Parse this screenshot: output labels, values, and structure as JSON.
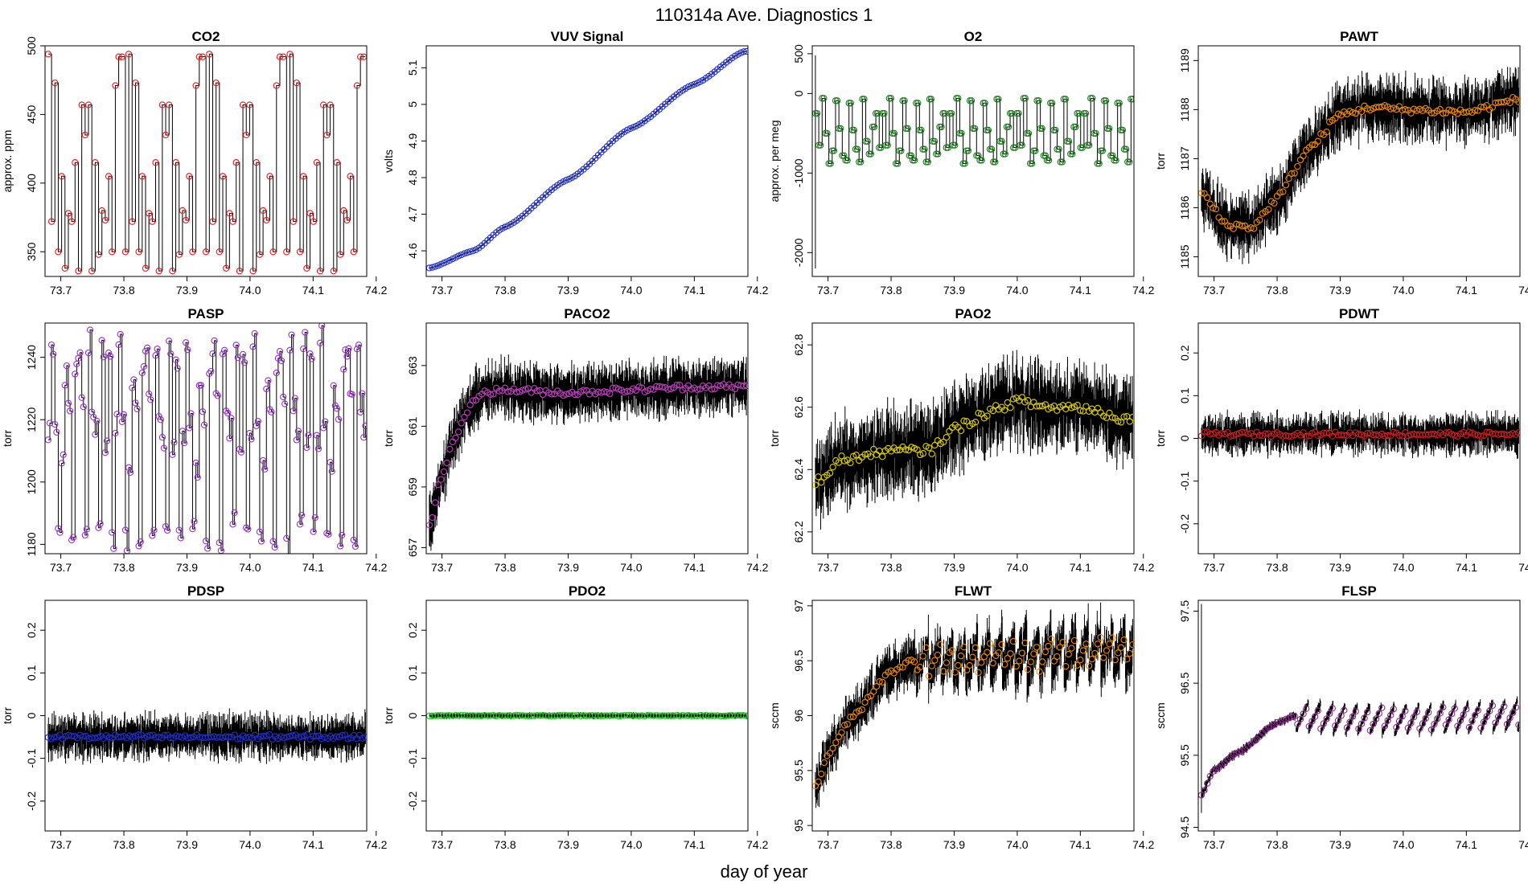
{
  "figure": {
    "title": "110314a   Ave. Diagnostics 1",
    "xlabel": "day of year"
  },
  "chart_data": [
    {
      "type": "line",
      "title": "CO2",
      "ylabel": "approx. ppm",
      "xlim": [
        73.675,
        74.185
      ],
      "ylim": [
        332,
        500
      ],
      "xticks": [
        73.7,
        73.8,
        73.9,
        74.0,
        74.1,
        74.2
      ],
      "yticks": [
        350,
        400,
        450,
        500
      ],
      "marker_color": "#e31a1c",
      "pattern": "cycle",
      "cycle": [
        494,
        372,
        473,
        350,
        405,
        338,
        378,
        372,
        415,
        336,
        457,
        435,
        457,
        336,
        415,
        348,
        380,
        373,
        405,
        350,
        471,
        492,
        492,
        350
      ],
      "noise": 0,
      "min_at": null
    },
    {
      "type": "line",
      "title": "VUV Signal",
      "ylabel": "volts",
      "xlim": [
        73.675,
        74.185
      ],
      "ylim": [
        4.53,
        5.16
      ],
      "xticks": [
        73.7,
        73.8,
        73.9,
        74.0,
        74.1,
        74.2
      ],
      "yticks": [
        4.6,
        4.7,
        4.8,
        4.9,
        5.0,
        5.1
      ],
      "marker_color": "#1f2fd4",
      "pattern": "smooth",
      "anchors": [
        [
          73.68,
          4.553
        ],
        [
          73.75,
          4.6
        ],
        [
          73.8,
          4.665
        ],
        [
          73.9,
          4.795
        ],
        [
          74.0,
          4.935
        ],
        [
          74.1,
          5.055
        ],
        [
          74.18,
          5.145
        ]
      ],
      "noise": 0.002
    },
    {
      "type": "line",
      "title": "O2",
      "ylabel": "approx. per meg",
      "xlim": [
        73.675,
        74.185
      ],
      "ylim": [
        -2300,
        600
      ],
      "xticks": [
        73.7,
        73.8,
        73.9,
        74.0,
        74.1,
        74.2
      ],
      "yticks": [
        -2000,
        -1000,
        0,
        500
      ],
      "marker_color": "#1a7a1a",
      "pattern": "cycle",
      "cycle": [
        -250,
        -650,
        -60,
        -500,
        -880,
        -720,
        -90,
        -440,
        -780,
        -840,
        -120,
        -460,
        -700,
        -860,
        -70,
        -600,
        -760,
        -420,
        -250,
        -680
      ],
      "noise": 0,
      "spike": [
        73.68,
        -2200,
        480
      ]
    },
    {
      "type": "line",
      "title": "PAWT",
      "ylabel": "torr",
      "xlim": [
        73.675,
        74.185
      ],
      "ylim": [
        1184.6,
        1189.3
      ],
      "xticks": [
        73.7,
        73.8,
        73.9,
        74.0,
        74.1,
        74.2
      ],
      "yticks": [
        1185,
        1186,
        1187,
        1188,
        1189
      ],
      "marker_color": "#f08a00",
      "pattern": "smooth",
      "anchors": [
        [
          73.68,
          1186.3
        ],
        [
          73.72,
          1185.65
        ],
        [
          73.76,
          1185.6
        ],
        [
          73.8,
          1186.2
        ],
        [
          73.85,
          1187.2
        ],
        [
          73.9,
          1187.9
        ],
        [
          73.95,
          1188.05
        ],
        [
          74.0,
          1188.0
        ],
        [
          74.1,
          1187.95
        ],
        [
          74.18,
          1188.2
        ]
      ],
      "noise": 0.55
    },
    {
      "type": "line",
      "title": "PASP",
      "ylabel": "torr",
      "xlim": [
        73.675,
        74.185
      ],
      "ylim": [
        1177,
        1251
      ],
      "xticks": [
        73.7,
        73.8,
        73.9,
        74.0,
        74.1,
        74.2
      ],
      "yticks": [
        1180,
        1200,
        1220,
        1240
      ],
      "marker_color": "#9b30d0",
      "pattern": "cycle",
      "cycle": [
        1215,
        1244,
        1218,
        1185,
        1206,
        1230,
        1224,
        1180,
        1236,
        1241,
        1228,
        1182,
        1242,
        1222,
        1215,
        1185,
        1244,
        1210,
        1240,
        1184
      ],
      "noise": 1.5
    },
    {
      "type": "line",
      "title": "PACO2",
      "ylabel": "torr",
      "xlim": [
        73.675,
        74.185
      ],
      "ylim": [
        656.8,
        664.4
      ],
      "xticks": [
        73.7,
        73.8,
        73.9,
        74.0,
        74.1,
        74.2
      ],
      "yticks": [
        657,
        659,
        661,
        663
      ],
      "marker_color": "#c040c0",
      "pattern": "smooth",
      "anchors": [
        [
          73.68,
          657.8
        ],
        [
          73.7,
          659.4
        ],
        [
          73.72,
          660.6
        ],
        [
          73.74,
          661.5
        ],
        [
          73.76,
          662.1
        ],
        [
          73.8,
          662.2
        ],
        [
          73.9,
          662.1
        ],
        [
          74.0,
          662.2
        ],
        [
          74.1,
          662.3
        ],
        [
          74.18,
          662.3
        ]
      ],
      "noise": 0.8
    },
    {
      "type": "line",
      "title": "PAO2",
      "ylabel": "torr",
      "xlim": [
        73.675,
        74.185
      ],
      "ylim": [
        62.13,
        62.87
      ],
      "xticks": [
        73.7,
        73.8,
        73.9,
        74.0,
        74.1,
        74.2
      ],
      "yticks": [
        62.2,
        62.4,
        62.6,
        62.8
      ],
      "marker_color": "#e0d000",
      "pattern": "smooth",
      "anchors": [
        [
          73.68,
          62.36
        ],
        [
          73.72,
          62.43
        ],
        [
          73.8,
          62.46
        ],
        [
          73.86,
          62.46
        ],
        [
          73.9,
          62.53
        ],
        [
          73.95,
          62.58
        ],
        [
          74.0,
          62.62
        ],
        [
          74.05,
          62.6
        ],
        [
          74.1,
          62.6
        ],
        [
          74.18,
          62.56
        ]
      ],
      "noise": 0.12
    },
    {
      "type": "line",
      "title": "PDWT",
      "ylabel": "torr",
      "xlim": [
        73.675,
        74.185
      ],
      "ylim": [
        -0.27,
        0.27
      ],
      "xticks": [
        73.7,
        73.8,
        73.9,
        74.0,
        74.1,
        74.2
      ],
      "yticks": [
        -0.2,
        -0.1,
        0.0,
        0.1,
        0.2
      ],
      "marker_color": "#d02020",
      "pattern": "smooth",
      "anchors": [
        [
          73.68,
          0.01
        ],
        [
          74.18,
          0.01
        ]
      ],
      "noise": 0.04
    },
    {
      "type": "line",
      "title": "PDSP",
      "ylabel": "torr",
      "xlim": [
        73.675,
        74.185
      ],
      "ylim": [
        -0.27,
        0.27
      ],
      "xticks": [
        73.7,
        73.8,
        73.9,
        74.0,
        74.1,
        74.2
      ],
      "yticks": [
        -0.2,
        -0.1,
        0.0,
        0.1,
        0.2
      ],
      "marker_color": "#1f2fd4",
      "pattern": "smooth",
      "anchors": [
        [
          73.68,
          -0.05
        ],
        [
          74.18,
          -0.05
        ]
      ],
      "noise": 0.045
    },
    {
      "type": "line",
      "title": "PDO2",
      "ylabel": "torr",
      "xlim": [
        73.675,
        74.185
      ],
      "ylim": [
        -0.27,
        0.27
      ],
      "xticks": [
        73.7,
        73.8,
        73.9,
        74.0,
        74.1,
        74.2
      ],
      "yticks": [
        -0.2,
        -0.1,
        0.0,
        0.1,
        0.2
      ],
      "marker_color": "#22c022",
      "pattern": "smooth",
      "anchors": [
        [
          73.68,
          0.0
        ],
        [
          74.18,
          0.0
        ]
      ],
      "noise": 0.006
    },
    {
      "type": "line",
      "title": "FLWT",
      "ylabel": "sccm",
      "xlim": [
        73.675,
        74.185
      ],
      "ylim": [
        94.95,
        97.05
      ],
      "xticks": [
        73.7,
        73.8,
        73.9,
        74.0,
        74.1,
        74.2
      ],
      "yticks": [
        95.0,
        95.5,
        96.0,
        96.5,
        97.0
      ],
      "marker_color": "#f08a00",
      "pattern": "smooth",
      "anchors": [
        [
          73.68,
          95.35
        ],
        [
          73.7,
          95.65
        ],
        [
          73.74,
          96.0
        ],
        [
          73.8,
          96.4
        ],
        [
          73.84,
          96.52
        ],
        [
          73.9,
          96.5
        ],
        [
          74.0,
          96.55
        ],
        [
          74.18,
          96.6
        ]
      ],
      "noise": 0.2,
      "sawtooth": 0.35
    },
    {
      "type": "line",
      "title": "FLSP",
      "ylabel": "sccm",
      "xlim": [
        73.675,
        74.185
      ],
      "ylim": [
        94.45,
        97.65
      ],
      "xticks": [
        73.7,
        73.8,
        73.9,
        74.0,
        74.1,
        74.2
      ],
      "yticks": [
        94.5,
        95.5,
        96.5,
        97.5
      ],
      "marker_color": "#8a2a8a",
      "pattern": "smooth",
      "anchors": [
        [
          73.68,
          94.95
        ],
        [
          73.7,
          95.3
        ],
        [
          73.74,
          95.55
        ],
        [
          73.8,
          95.95
        ],
        [
          73.83,
          96.05
        ],
        [
          73.9,
          96.0
        ],
        [
          74.0,
          96.0
        ],
        [
          74.18,
          96.05
        ]
      ],
      "noise": 0.06,
      "sawtooth": 0.4,
      "spike": [
        73.68,
        94.7,
        97.6
      ]
    }
  ]
}
